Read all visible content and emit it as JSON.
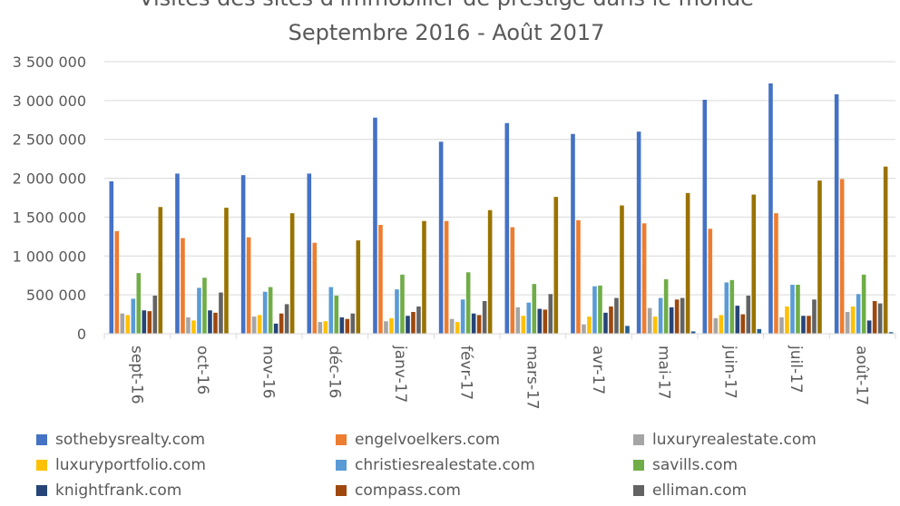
{
  "chart_data": {
    "type": "bar",
    "title_line1": "Visites des sites d'immobilier de prestige dans le monde",
    "title_line2": "Septembre 2016 - Août 2017",
    "xlabel": "",
    "ylabel": "",
    "ylim": [
      0,
      3500000
    ],
    "yticks": [
      0,
      500000,
      1000000,
      1500000,
      2000000,
      2500000,
      3000000,
      3500000
    ],
    "ytick_labels": [
      "0",
      "500 000",
      "1 000 000",
      "1 500 000",
      "2 000 000",
      "2 500 000",
      "3 000 000",
      "3 500 000"
    ],
    "grid": true,
    "legend_position": "bottom",
    "categories": [
      "sept-16",
      "oct-16",
      "nov-16",
      "déc-16",
      "janv-17",
      "févr-17",
      "mars-17",
      "avr-17",
      "mai-17",
      "juin-17",
      "juil-17",
      "août-17"
    ],
    "series": [
      {
        "name": "sothebysrealty.com",
        "color": "#4472c4",
        "values": [
          1960000,
          2060000,
          2040000,
          2060000,
          2780000,
          2470000,
          2710000,
          2570000,
          2600000,
          3010000,
          3220000,
          3080000
        ]
      },
      {
        "name": "engelvoelkers.com",
        "color": "#ed7d31",
        "values": [
          1320000,
          1230000,
          1240000,
          1170000,
          1400000,
          1450000,
          1370000,
          1460000,
          1420000,
          1350000,
          1550000,
          1990000
        ]
      },
      {
        "name": "luxuryrealestate.com",
        "color": "#a5a5a5",
        "values": [
          260000,
          210000,
          220000,
          150000,
          160000,
          190000,
          340000,
          120000,
          330000,
          200000,
          210000,
          280000
        ]
      },
      {
        "name": "luxuryportfolio.com",
        "color": "#ffc000",
        "values": [
          240000,
          170000,
          240000,
          160000,
          200000,
          150000,
          230000,
          220000,
          220000,
          240000,
          350000,
          350000
        ]
      },
      {
        "name": "christiesrealestate.com",
        "color": "#5b9bd5",
        "values": [
          450000,
          590000,
          540000,
          600000,
          570000,
          440000,
          400000,
          610000,
          460000,
          660000,
          630000,
          510000
        ]
      },
      {
        "name": "savills.com",
        "color": "#70ad47",
        "values": [
          780000,
          720000,
          600000,
          490000,
          760000,
          790000,
          640000,
          620000,
          700000,
          690000,
          630000,
          760000
        ]
      },
      {
        "name": "knightfrank.com",
        "color": "#264478",
        "values": [
          300000,
          300000,
          130000,
          210000,
          230000,
          260000,
          320000,
          270000,
          340000,
          360000,
          230000,
          170000
        ]
      },
      {
        "name": "compass.com",
        "color": "#9e480e",
        "values": [
          290000,
          270000,
          260000,
          190000,
          280000,
          240000,
          310000,
          350000,
          440000,
          250000,
          230000,
          420000
        ]
      },
      {
        "name": "elliman.com",
        "color": "#636363",
        "values": [
          490000,
          530000,
          380000,
          260000,
          350000,
          420000,
          510000,
          460000,
          460000,
          490000,
          440000,
          390000
        ]
      },
      {
        "name": "",
        "color": "#997300",
        "values": [
          1630000,
          1620000,
          1550000,
          1200000,
          1450000,
          1590000,
          1760000,
          1650000,
          1810000,
          1790000,
          1970000,
          2150000
        ]
      },
      {
        "name": "",
        "color": "#255e91",
        "values": [
          0,
          0,
          0,
          0,
          0,
          0,
          0,
          100000,
          30000,
          60000,
          0,
          20000
        ]
      }
    ]
  }
}
